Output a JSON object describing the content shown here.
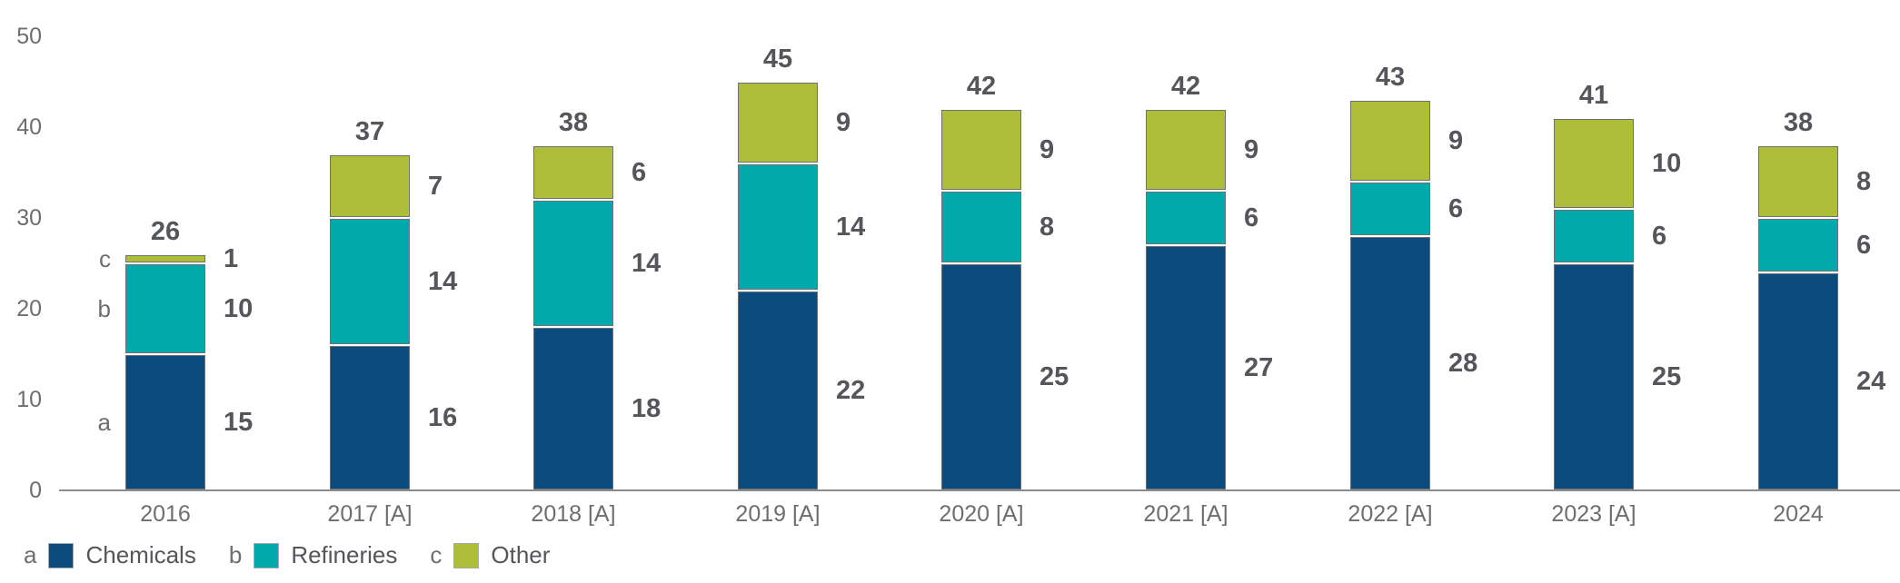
{
  "chart_data": {
    "type": "bar",
    "stacked": true,
    "categories": [
      "2016",
      "2017 [A]",
      "2018 [A]",
      "2019 [A]",
      "2020 [A]",
      "2021 [A]",
      "2022 [A]",
      "2023 [A]",
      "2024"
    ],
    "series": [
      {
        "key": "a",
        "name": "Chemicals",
        "color": "#0B4B7E",
        "values": [
          15,
          16,
          18,
          22,
          25,
          27,
          28,
          25,
          24
        ]
      },
      {
        "key": "b",
        "name": "Refineries",
        "color": "#00A9AB",
        "values": [
          10,
          14,
          14,
          14,
          8,
          6,
          6,
          6,
          6
        ]
      },
      {
        "key": "c",
        "name": "Other",
        "color": "#AFBE3A",
        "values": [
          1,
          7,
          6,
          9,
          9,
          9,
          9,
          10,
          8
        ]
      }
    ],
    "totals": [
      26,
      37,
      38,
      45,
      42,
      42,
      43,
      41,
      38
    ],
    "first_bar_segment_letters": [
      "a",
      "b",
      "c"
    ],
    "xlabel": "",
    "ylabel": "",
    "ylim": [
      0,
      50
    ],
    "yticks": [
      0,
      10,
      20,
      30,
      40,
      50
    ],
    "grid": false,
    "legend_position": "bottom"
  },
  "colors": {
    "background": "#FFFFFF",
    "axis_line": "#8A8C8E",
    "tick_label": "#6D6E71",
    "category_label": "#6D6E71",
    "value_label": "#55565A",
    "segment_letter": "#6D6E71",
    "legend_text": "#55565A",
    "segment_border": "#6F7072"
  }
}
